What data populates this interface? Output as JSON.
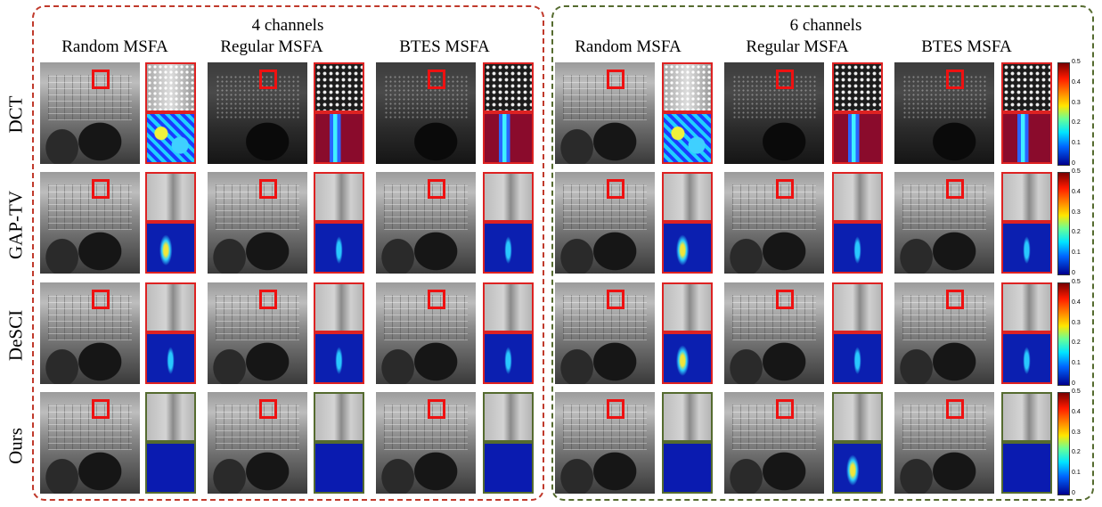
{
  "groups": [
    {
      "title": "4 channels",
      "color": "#c0392b"
    },
    {
      "title": "6 channels",
      "color": "#556b2f"
    }
  ],
  "columns": [
    "Random MSFA",
    "Regular MSFA",
    "BTES MSFA"
  ],
  "rows": [
    "DCT",
    "GAP-TV",
    "DeSCI",
    "Ours"
  ],
  "colorbar_ticks": [
    "0.5",
    "0.4",
    "0.3",
    "0.2",
    "0.1",
    "0"
  ]
}
